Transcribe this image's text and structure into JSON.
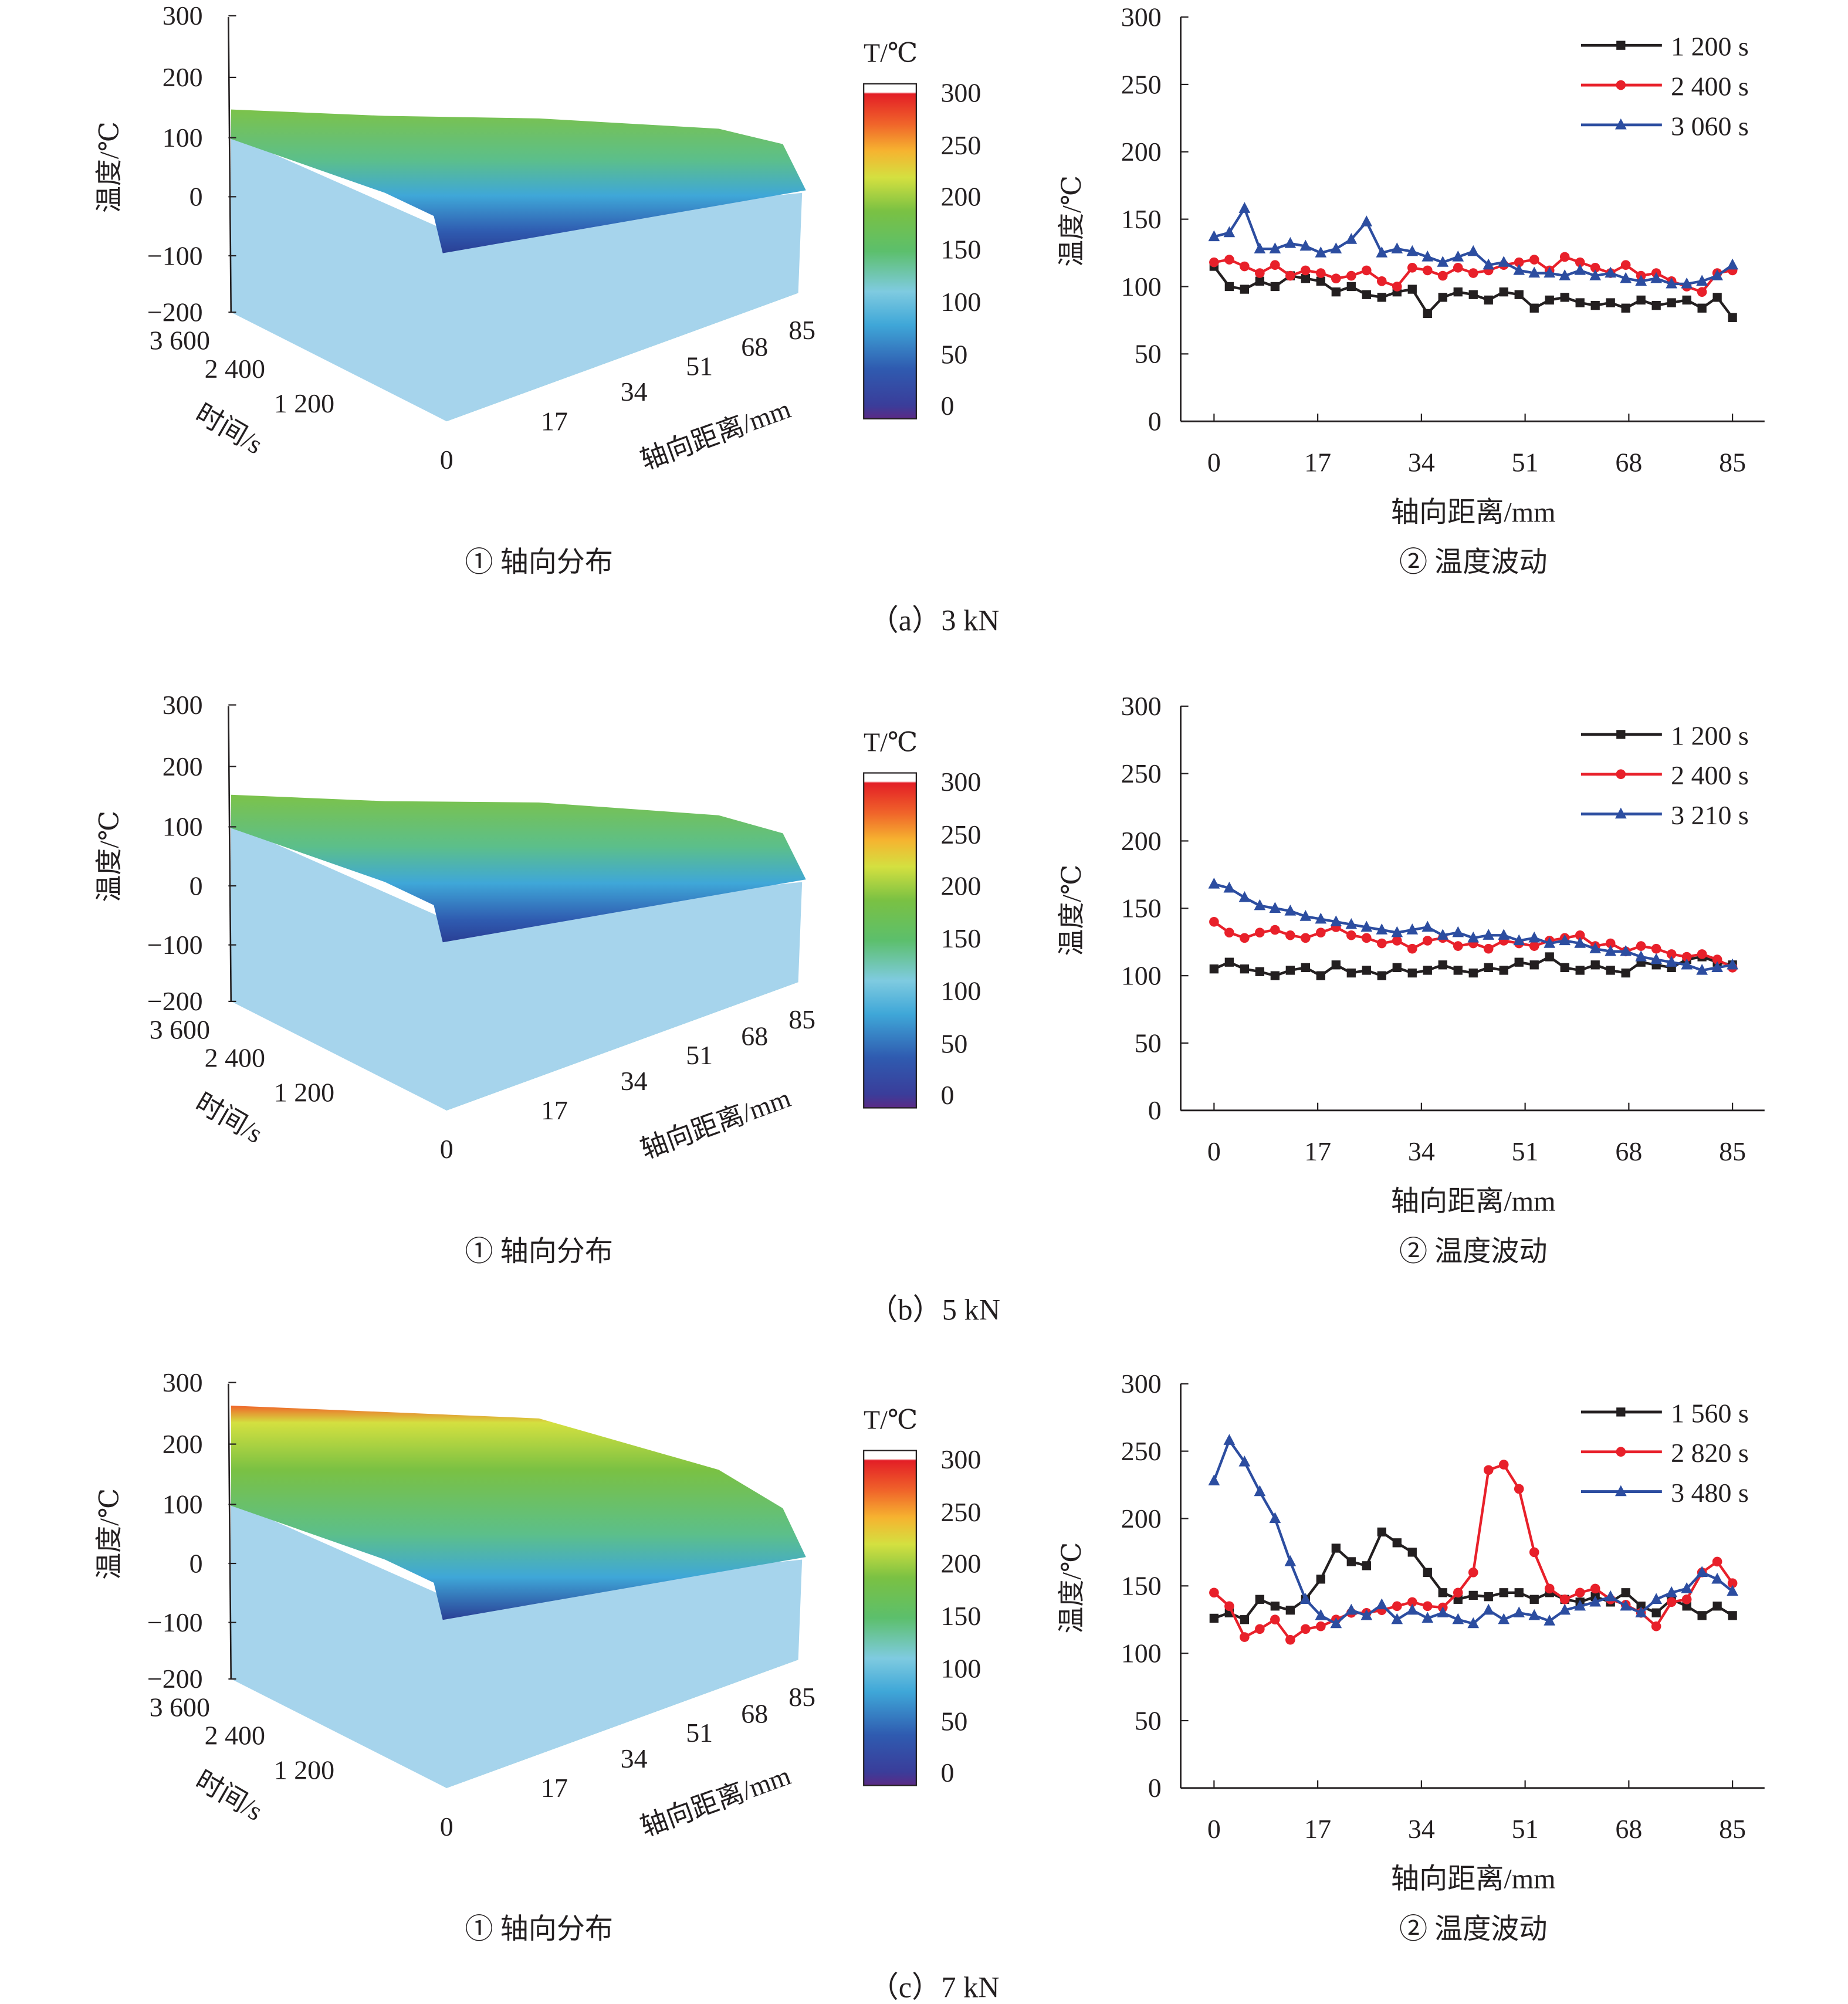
{
  "colors": {
    "black_series": "#231f20",
    "red_series": "#e8202a",
    "blue_series": "#2c4da0"
  },
  "panels": [
    {
      "caption": "（a）3 kN",
      "surface": {
        "caption": "① 轴向分布",
        "zlabel": "温度/℃",
        "zticks": [
          "300",
          "200",
          "100",
          "0",
          "−100",
          "−200"
        ],
        "time_label": "时间/s",
        "time_ticks": [
          "3 600",
          "2 400",
          "1 200",
          "0"
        ],
        "dist_label": "轴向距离/mm",
        "dist_ticks": [
          "17",
          "34",
          "51",
          "68",
          "85"
        ]
      },
      "colorbar": {
        "title": "T/℃",
        "ticks": [
          "300",
          "250",
          "200",
          "150",
          "100",
          "50",
          "0"
        ]
      }
    },
    {
      "caption": "（b）5 kN",
      "surface": {
        "caption": "① 轴向分布",
        "zlabel": "温度/℃",
        "zticks": [
          "300",
          "200",
          "100",
          "0",
          "−100",
          "−200"
        ],
        "time_label": "时间/s",
        "time_ticks": [
          "3 600",
          "2 400",
          "1 200",
          "0"
        ],
        "dist_label": "轴向距离/mm",
        "dist_ticks": [
          "17",
          "34",
          "51",
          "68",
          "85"
        ]
      },
      "colorbar": {
        "title": "T/℃",
        "ticks": [
          "300",
          "250",
          "200",
          "150",
          "100",
          "50",
          "0"
        ]
      }
    },
    {
      "caption": "（c）7 kN",
      "surface": {
        "caption": "① 轴向分布",
        "zlabel": "温度/℃",
        "zticks": [
          "300",
          "200",
          "100",
          "0",
          "−100",
          "−200"
        ],
        "time_label": "时间/s",
        "time_ticks": [
          "3 600",
          "2 400",
          "1 200",
          "0"
        ],
        "dist_label": "轴向距离/mm",
        "dist_ticks": [
          "17",
          "34",
          "51",
          "68",
          "85"
        ]
      },
      "colorbar": {
        "title": "T/℃",
        "ticks": [
          "300",
          "250",
          "200",
          "150",
          "100",
          "50",
          "0"
        ]
      }
    }
  ],
  "chart_data": [
    {
      "type": "line",
      "caption": "② 温度波动",
      "xlabel": "轴向距离/mm",
      "ylabel": "温度/℃",
      "xlim": [
        0,
        85
      ],
      "ylim": [
        0,
        300
      ],
      "xticks": [
        "0",
        "17",
        "34",
        "51",
        "68",
        "85"
      ],
      "yticks": [
        "0",
        "50",
        "100",
        "150",
        "200",
        "250",
        "300"
      ],
      "legend": "top-right",
      "grid": false,
      "x": [
        0,
        2.5,
        5,
        7.5,
        10,
        12.5,
        15,
        17.5,
        20,
        22.5,
        25,
        27.5,
        30,
        32.5,
        35,
        37.5,
        40,
        42.5,
        45,
        47.5,
        50,
        52.5,
        55,
        57.5,
        60,
        62.5,
        65,
        67.5,
        70,
        72.5,
        75,
        77.5,
        80,
        82.5,
        85
      ],
      "series": [
        {
          "name": "1 200 s",
          "marker": "square",
          "color": "#231f20",
          "values": [
            115,
            100,
            98,
            104,
            100,
            108,
            106,
            104,
            96,
            100,
            94,
            92,
            96,
            98,
            80,
            92,
            96,
            94,
            90,
            96,
            94,
            84,
            90,
            92,
            88,
            86,
            88,
            84,
            90,
            86,
            88,
            90,
            84,
            92,
            77
          ]
        },
        {
          "name": "2 400 s",
          "marker": "circle",
          "color": "#e8202a",
          "values": [
            118,
            120,
            115,
            110,
            116,
            108,
            112,
            110,
            106,
            108,
            112,
            104,
            100,
            114,
            112,
            108,
            114,
            110,
            112,
            116,
            118,
            120,
            112,
            122,
            118,
            114,
            110,
            116,
            108,
            110,
            104,
            100,
            96,
            110,
            112
          ]
        },
        {
          "name": "3 060 s",
          "marker": "triangle",
          "color": "#2c4da0",
          "values": [
            137,
            140,
            158,
            128,
            128,
            132,
            130,
            125,
            128,
            135,
            148,
            125,
            128,
            126,
            122,
            118,
            122,
            126,
            116,
            118,
            112,
            110,
            110,
            108,
            112,
            108,
            110,
            106,
            104,
            106,
            102,
            102,
            104,
            108,
            116
          ]
        }
      ]
    },
    {
      "type": "line",
      "caption": "② 温度波动",
      "xlabel": "轴向距离/mm",
      "ylabel": "温度/℃",
      "xlim": [
        0,
        85
      ],
      "ylim": [
        0,
        300
      ],
      "xticks": [
        "0",
        "17",
        "34",
        "51",
        "68",
        "85"
      ],
      "yticks": [
        "0",
        "50",
        "100",
        "150",
        "200",
        "250",
        "300"
      ],
      "legend": "top-right",
      "grid": false,
      "x": [
        0,
        2.5,
        5,
        7.5,
        10,
        12.5,
        15,
        17.5,
        20,
        22.5,
        25,
        27.5,
        30,
        32.5,
        35,
        37.5,
        40,
        42.5,
        45,
        47.5,
        50,
        52.5,
        55,
        57.5,
        60,
        62.5,
        65,
        67.5,
        70,
        72.5,
        75,
        77.5,
        80,
        82.5,
        85
      ],
      "series": [
        {
          "name": "1 200 s",
          "marker": "square",
          "color": "#231f20",
          "values": [
            105,
            110,
            105,
            103,
            100,
            104,
            106,
            100,
            108,
            102,
            104,
            100,
            106,
            102,
            104,
            108,
            104,
            102,
            106,
            104,
            110,
            108,
            114,
            106,
            104,
            108,
            104,
            102,
            110,
            108,
            106,
            112,
            114,
            110,
            108
          ]
        },
        {
          "name": "2 400 s",
          "marker": "circle",
          "color": "#e8202a",
          "values": [
            140,
            132,
            128,
            132,
            134,
            130,
            128,
            132,
            136,
            130,
            128,
            124,
            126,
            120,
            126,
            128,
            122,
            124,
            120,
            126,
            124,
            122,
            126,
            128,
            130,
            122,
            124,
            118,
            122,
            120,
            116,
            114,
            116,
            112,
            106
          ]
        },
        {
          "name": "3 210 s",
          "marker": "triangle",
          "color": "#2c4da0",
          "values": [
            168,
            165,
            158,
            152,
            150,
            148,
            144,
            142,
            140,
            138,
            136,
            134,
            132,
            134,
            136,
            130,
            132,
            128,
            130,
            130,
            126,
            128,
            124,
            126,
            124,
            120,
            118,
            118,
            114,
            112,
            110,
            108,
            104,
            106,
            108
          ]
        }
      ]
    },
    {
      "type": "line",
      "caption": "② 温度波动",
      "xlabel": "轴向距离/mm",
      "ylabel": "温度/℃",
      "xlim": [
        0,
        85
      ],
      "ylim": [
        0,
        300
      ],
      "xticks": [
        "0",
        "17",
        "34",
        "51",
        "68",
        "85"
      ],
      "yticks": [
        "0",
        "50",
        "100",
        "150",
        "200",
        "250",
        "300"
      ],
      "legend": "top-right",
      "grid": false,
      "x": [
        0,
        2.5,
        5,
        7.5,
        10,
        12.5,
        15,
        17.5,
        20,
        22.5,
        25,
        27.5,
        30,
        32.5,
        35,
        37.5,
        40,
        42.5,
        45,
        47.5,
        50,
        52.5,
        55,
        57.5,
        60,
        62.5,
        65,
        67.5,
        70,
        72.5,
        75,
        77.5,
        80,
        82.5,
        85
      ],
      "series": [
        {
          "name": "1 560 s",
          "marker": "square",
          "color": "#231f20",
          "values": [
            126,
            130,
            125,
            140,
            135,
            132,
            140,
            155,
            178,
            168,
            165,
            190,
            182,
            175,
            160,
            145,
            140,
            143,
            142,
            145,
            145,
            140,
            145,
            140,
            138,
            142,
            138,
            145,
            135,
            130,
            140,
            135,
            128,
            135,
            128
          ]
        },
        {
          "name": "2 820 s",
          "marker": "circle",
          "color": "#e8202a",
          "values": [
            145,
            135,
            112,
            118,
            125,
            110,
            118,
            120,
            125,
            130,
            130,
            132,
            135,
            138,
            135,
            134,
            145,
            160,
            236,
            240,
            222,
            175,
            148,
            140,
            145,
            148,
            140,
            136,
            130,
            120,
            138,
            140,
            160,
            168,
            152
          ]
        },
        {
          "name": "3 480 s",
          "marker": "triangle",
          "color": "#2c4da0",
          "values": [
            228,
            258,
            242,
            220,
            200,
            168,
            140,
            128,
            122,
            132,
            128,
            136,
            125,
            132,
            126,
            130,
            125,
            122,
            132,
            125,
            130,
            128,
            124,
            132,
            135,
            138,
            142,
            135,
            130,
            140,
            145,
            148,
            160,
            155,
            146
          ]
        }
      ]
    }
  ]
}
